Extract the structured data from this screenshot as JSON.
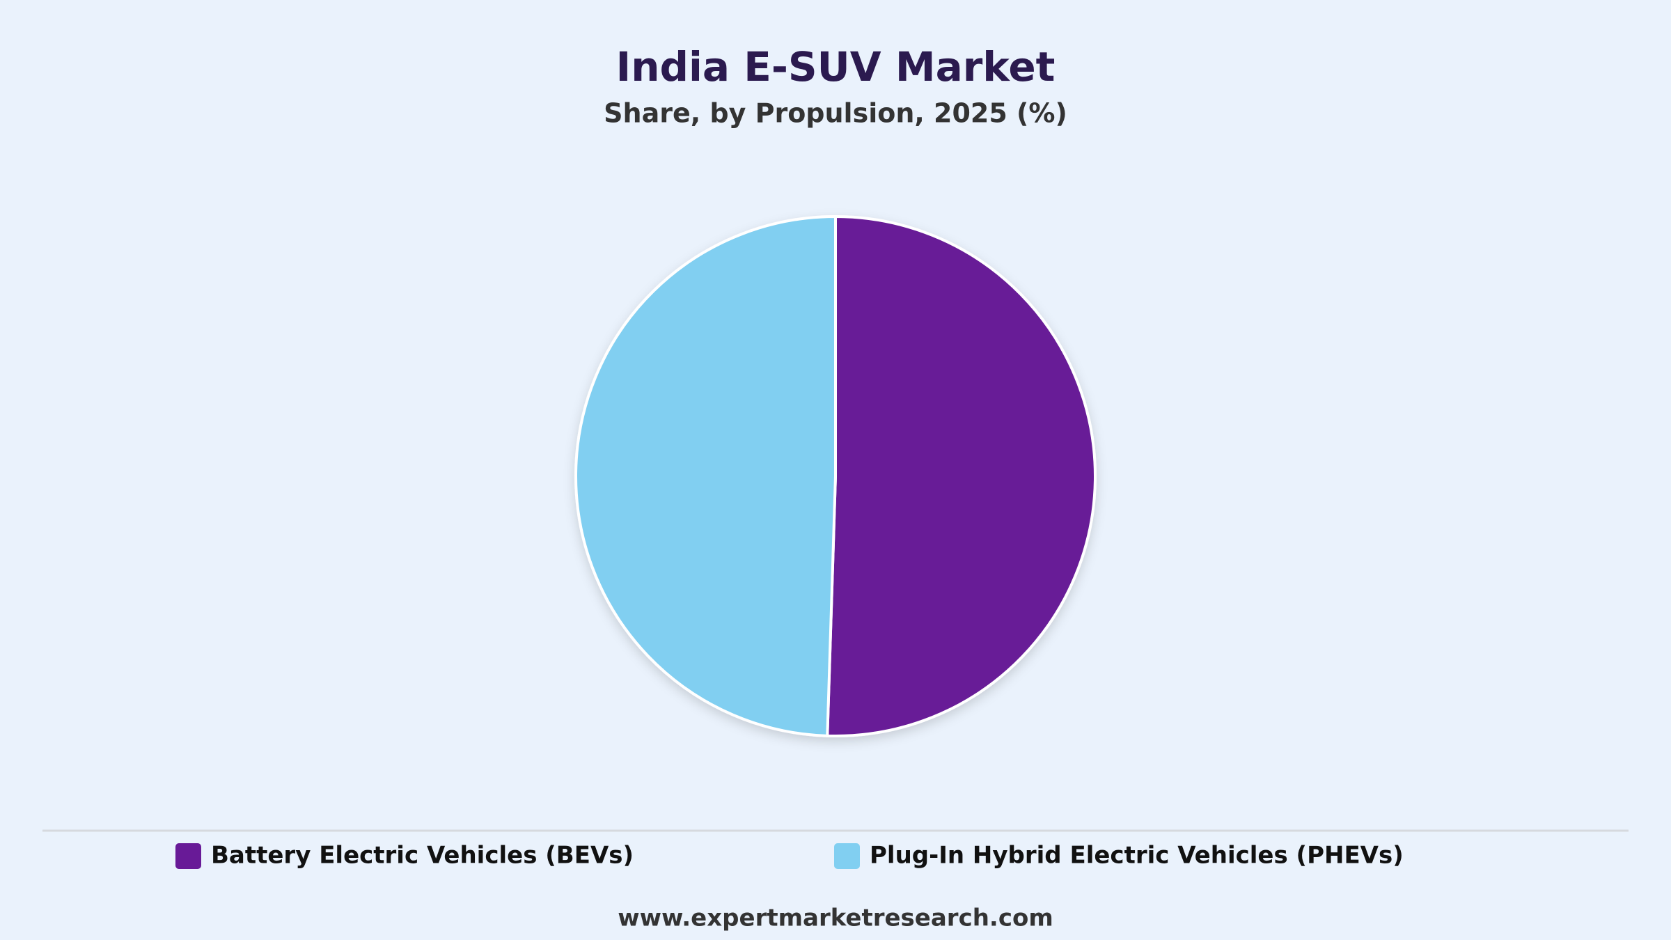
{
  "chart_data": {
    "type": "pie",
    "title": "India E-SUV Market",
    "subtitle": "Share, by Propulsion, 2025 (%)",
    "categories": [
      "Battery Electric Vehicles (BEVs)",
      "Plug-In Hybrid Electric Vehicles (PHEVs)"
    ],
    "values": [
      50.5,
      49.5
    ],
    "colors": [
      "#681a97",
      "#81cff1"
    ],
    "legend": "bottom",
    "source": "www.expertmarketresearch.com"
  }
}
